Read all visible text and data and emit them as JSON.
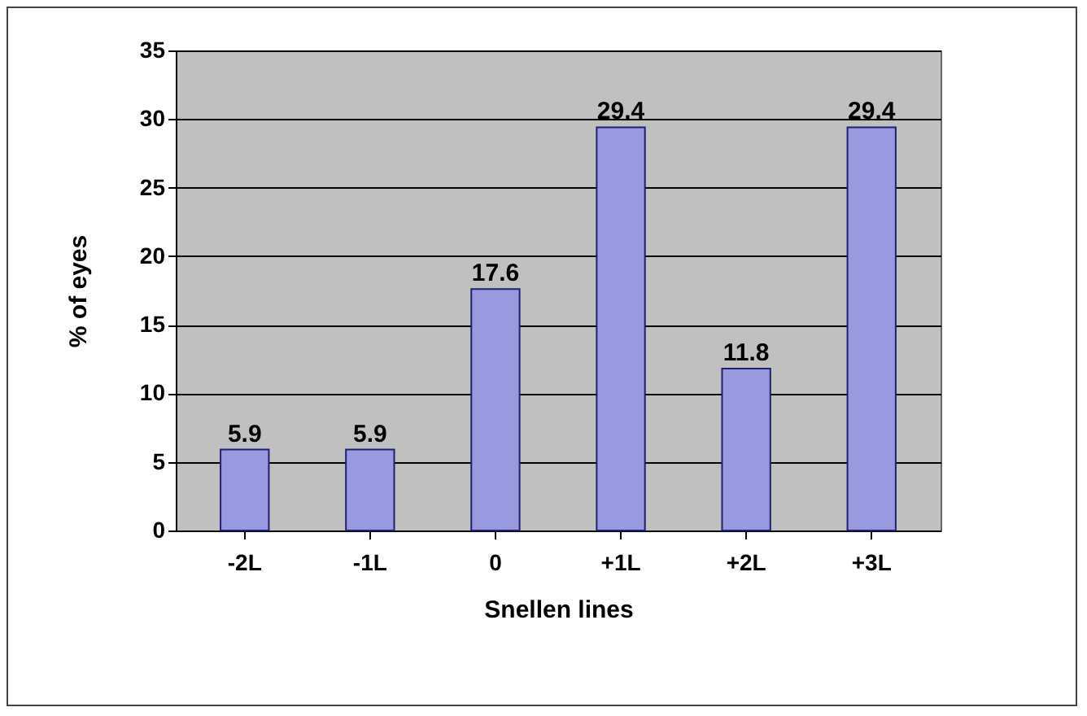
{
  "chart_data": {
    "type": "bar",
    "xlabel": "Snellen lines",
    "ylabel": "% of eyes",
    "categories": [
      "-2L",
      "-1L",
      "0",
      "+1L",
      "+2L",
      "+3L"
    ],
    "values": [
      5.9,
      5.9,
      17.6,
      29.4,
      11.8,
      29.4
    ],
    "color": "#9999e0",
    "ylim": [
      0,
      35
    ],
    "yticks": [
      0,
      5,
      10,
      15,
      20,
      25,
      30,
      35
    ],
    "grid": "y",
    "data_labels": true
  }
}
